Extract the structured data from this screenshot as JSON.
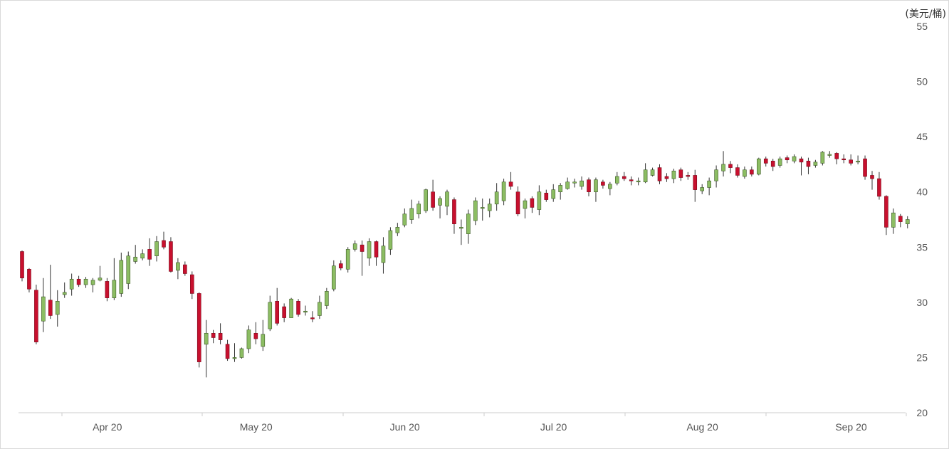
{
  "chart_data": {
    "type": "candlestick",
    "title": "",
    "ylabel": "(美元/桶)",
    "xlabel": "",
    "ylim": [
      20,
      55
    ],
    "y_ticks": [
      20,
      25,
      30,
      35,
      40,
      45,
      50,
      55
    ],
    "x_ticks": [
      {
        "label": "Apr 20",
        "index": 5
      },
      {
        "label": "May 20",
        "index": 26
      },
      {
        "label": "Jun 20",
        "index": 47
      },
      {
        "label": "Jul 20",
        "index": 68
      },
      {
        "label": "Aug 20",
        "index": 89
      },
      {
        "label": "Sep 20",
        "index": 110
      }
    ],
    "colors": {
      "up": "#8cbd63",
      "down": "#c8102e",
      "wick": "#333333",
      "text": "#555555"
    },
    "grid": false,
    "candles": [
      [
        34.6,
        32.2,
        34.7,
        31.9
      ],
      [
        33.0,
        31.2,
        33.1,
        30.9
      ],
      [
        31.1,
        26.4,
        31.6,
        26.2
      ],
      [
        28.3,
        30.5,
        32.2,
        27.3
      ],
      [
        30.2,
        28.8,
        33.4,
        28.5
      ],
      [
        28.9,
        30.1,
        31.1,
        27.8
      ],
      [
        30.7,
        30.9,
        31.8,
        30.4
      ],
      [
        31.2,
        32.1,
        32.6,
        30.6
      ],
      [
        32.1,
        31.6,
        32.4,
        31.4
      ],
      [
        31.6,
        32.1,
        32.3,
        31.3
      ],
      [
        31.6,
        32.0,
        32.2,
        30.9
      ],
      [
        32.0,
        32.2,
        33.3,
        31.9
      ],
      [
        31.9,
        30.4,
        32.2,
        30.1
      ],
      [
        30.4,
        32.0,
        34.0,
        30.2
      ],
      [
        30.8,
        33.8,
        34.5,
        30.5
      ],
      [
        31.7,
        34.2,
        34.6,
        31.2
      ],
      [
        33.7,
        34.1,
        35.2,
        33.5
      ],
      [
        34.0,
        34.4,
        34.8,
        33.8
      ],
      [
        34.8,
        33.9,
        35.8,
        33.3
      ],
      [
        34.2,
        35.5,
        36.0,
        33.7
      ],
      [
        35.6,
        35.0,
        36.4,
        34.8
      ],
      [
        35.5,
        32.8,
        35.9,
        32.7
      ],
      [
        32.9,
        33.6,
        34.0,
        32.1
      ],
      [
        33.4,
        32.6,
        33.7,
        32.4
      ],
      [
        32.5,
        30.8,
        32.8,
        30.3
      ],
      [
        30.8,
        24.6,
        30.9,
        24.1
      ],
      [
        26.2,
        27.2,
        28.4,
        23.2
      ],
      [
        27.2,
        26.8,
        27.5,
        26.3
      ],
      [
        27.2,
        26.6,
        28.1,
        26.2
      ],
      [
        26.2,
        24.9,
        26.6,
        24.7
      ],
      [
        25.0,
        25.0,
        26.3,
        24.6
      ],
      [
        25.0,
        25.8,
        25.9,
        24.9
      ],
      [
        25.8,
        27.5,
        27.9,
        25.4
      ],
      [
        27.2,
        26.7,
        28.2,
        26.2
      ],
      [
        26.0,
        27.1,
        28.4,
        25.6
      ],
      [
        27.6,
        30.0,
        30.6,
        27.4
      ],
      [
        30.1,
        28.1,
        31.3,
        27.9
      ],
      [
        29.6,
        28.6,
        29.9,
        28.2
      ],
      [
        28.6,
        30.3,
        30.4,
        28.6
      ],
      [
        30.1,
        28.9,
        30.3,
        28.7
      ],
      [
        29.2,
        29.2,
        29.7,
        28.8
      ],
      [
        28.6,
        28.5,
        29.2,
        28.2
      ],
      [
        28.8,
        30.0,
        30.6,
        28.5
      ],
      [
        29.7,
        31.0,
        31.3,
        29.4
      ],
      [
        31.2,
        33.3,
        33.8,
        31.0
      ],
      [
        33.5,
        33.1,
        33.8,
        32.9
      ],
      [
        33.0,
        34.8,
        35.0,
        32.7
      ],
      [
        34.8,
        35.3,
        35.6,
        34.6
      ],
      [
        35.2,
        34.6,
        35.6,
        32.4
      ],
      [
        34.0,
        35.5,
        35.8,
        33.3
      ],
      [
        35.5,
        34.1,
        35.6,
        33.3
      ],
      [
        33.6,
        35.1,
        35.9,
        32.6
      ],
      [
        34.8,
        36.5,
        36.8,
        34.3
      ],
      [
        36.3,
        36.8,
        37.2,
        36.0
      ],
      [
        37.0,
        38.0,
        38.5,
        36.8
      ],
      [
        37.5,
        38.5,
        39.3,
        37.1
      ],
      [
        38.0,
        38.9,
        39.2,
        37.6
      ],
      [
        38.3,
        40.2,
        40.3,
        38.1
      ],
      [
        40.0,
        38.6,
        41.1,
        38.3
      ],
      [
        38.8,
        39.4,
        39.6,
        37.6
      ],
      [
        38.7,
        40.0,
        40.2,
        37.9
      ],
      [
        39.3,
        37.1,
        39.5,
        36.2
      ],
      [
        36.7,
        36.8,
        37.5,
        35.2
      ],
      [
        36.2,
        38.0,
        38.4,
        35.3
      ],
      [
        37.4,
        39.2,
        39.5,
        37.0
      ],
      [
        38.5,
        38.6,
        39.4,
        37.4
      ],
      [
        38.3,
        38.9,
        39.4,
        37.7
      ],
      [
        38.9,
        40.0,
        40.8,
        38.3
      ],
      [
        39.2,
        40.9,
        41.2,
        38.8
      ],
      [
        40.9,
        40.5,
        41.8,
        40.2
      ],
      [
        40.0,
        38.0,
        40.5,
        37.8
      ],
      [
        38.5,
        39.2,
        39.4,
        37.6
      ],
      [
        39.4,
        38.6,
        39.6,
        38.1
      ],
      [
        38.4,
        40.0,
        40.6,
        37.9
      ],
      [
        39.9,
        39.3,
        40.2,
        39.1
      ],
      [
        39.4,
        40.2,
        40.7,
        39.1
      ],
      [
        40.0,
        40.6,
        40.8,
        39.3
      ],
      [
        40.3,
        40.9,
        41.3,
        40.2
      ],
      [
        40.9,
        40.9,
        41.2,
        40.4
      ],
      [
        40.5,
        41.0,
        41.4,
        40.2
      ],
      [
        41.1,
        40.0,
        41.3,
        39.6
      ],
      [
        40.0,
        41.1,
        41.3,
        39.1
      ],
      [
        40.9,
        40.6,
        41.1,
        40.3
      ],
      [
        40.3,
        40.7,
        40.9,
        39.7
      ],
      [
        40.8,
        41.4,
        41.8,
        40.6
      ],
      [
        41.4,
        41.2,
        41.8,
        41.0
      ],
      [
        41.1,
        41.0,
        41.4,
        40.6
      ],
      [
        40.9,
        41.0,
        41.3,
        40.6
      ],
      [
        40.9,
        42.0,
        42.6,
        40.8
      ],
      [
        41.5,
        42.0,
        42.2,
        41.4
      ],
      [
        42.2,
        41.0,
        42.5,
        40.7
      ],
      [
        41.4,
        41.2,
        41.7,
        40.9
      ],
      [
        41.2,
        41.9,
        42.1,
        40.8
      ],
      [
        42.0,
        41.3,
        42.2,
        41.0
      ],
      [
        41.5,
        41.4,
        41.8,
        41.1
      ],
      [
        41.5,
        40.2,
        42.0,
        39.1
      ],
      [
        40.1,
        40.4,
        40.7,
        39.8
      ],
      [
        40.4,
        41.0,
        41.3,
        39.7
      ],
      [
        41.0,
        42.0,
        42.4,
        40.4
      ],
      [
        41.9,
        42.5,
        43.7,
        41.4
      ],
      [
        42.5,
        42.2,
        42.8,
        41.7
      ],
      [
        42.2,
        41.5,
        42.5,
        41.3
      ],
      [
        41.4,
        42.0,
        42.3,
        41.2
      ],
      [
        42.0,
        41.6,
        42.3,
        41.4
      ],
      [
        41.6,
        43.0,
        43.1,
        41.5
      ],
      [
        43.0,
        42.6,
        43.2,
        42.3
      ],
      [
        42.8,
        42.3,
        43.0,
        41.9
      ],
      [
        42.4,
        43.0,
        43.2,
        42.2
      ],
      [
        43.1,
        42.9,
        43.3,
        42.6
      ],
      [
        42.8,
        43.2,
        43.4,
        42.6
      ],
      [
        43.0,
        42.7,
        43.2,
        41.5
      ],
      [
        42.8,
        42.3,
        43.1,
        41.6
      ],
      [
        42.4,
        42.7,
        42.9,
        42.2
      ],
      [
        42.6,
        43.6,
        43.7,
        42.4
      ],
      [
        43.4,
        43.4,
        43.7,
        43.1
      ],
      [
        43.5,
        43.0,
        43.6,
        42.5
      ],
      [
        43.0,
        42.9,
        43.4,
        42.6
      ],
      [
        42.9,
        42.6,
        43.4,
        42.4
      ],
      [
        42.8,
        42.8,
        43.3,
        42.5
      ],
      [
        43.0,
        41.4,
        43.3,
        41.1
      ],
      [
        41.5,
        41.2,
        41.9,
        40.2
      ],
      [
        41.2,
        39.6,
        41.8,
        39.3
      ],
      [
        39.6,
        36.8,
        39.7,
        36.1
      ],
      [
        36.8,
        38.1,
        38.5,
        36.2
      ],
      [
        37.8,
        37.3,
        38.0,
        36.8
      ],
      [
        37.1,
        37.5,
        37.8,
        36.7
      ]
    ]
  }
}
